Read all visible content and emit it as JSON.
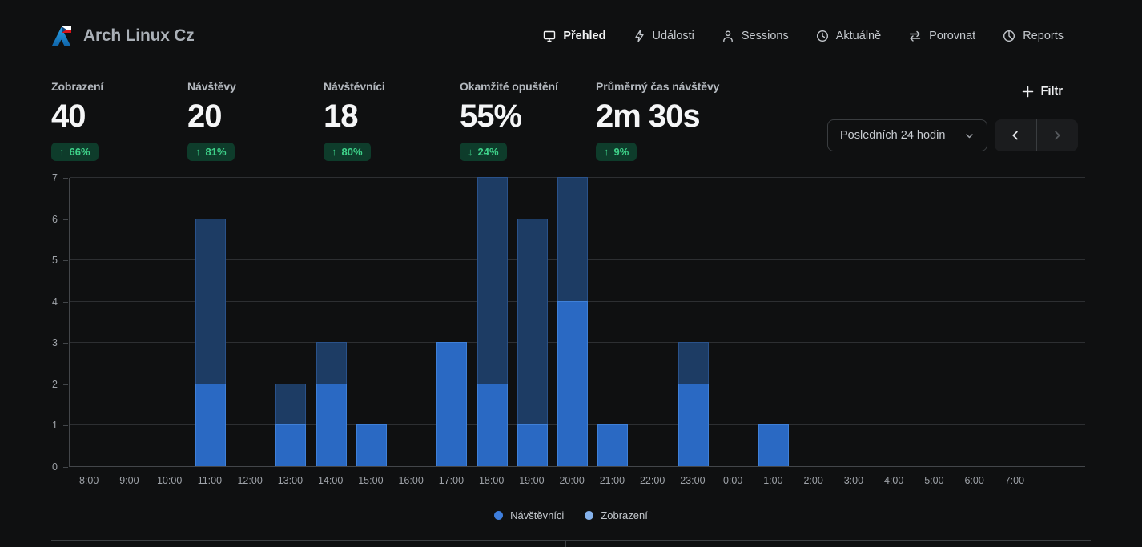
{
  "app": {
    "title": "Arch Linux Cz"
  },
  "nav": {
    "items": [
      {
        "label": "Přehled",
        "icon": "monitor-icon",
        "active": true
      },
      {
        "label": "Události",
        "icon": "lightning-icon",
        "active": false
      },
      {
        "label": "Sessions",
        "icon": "person-icon",
        "active": false
      },
      {
        "label": "Aktuálně",
        "icon": "clock-icon",
        "active": false
      },
      {
        "label": "Porovnat",
        "icon": "compare-icon",
        "active": false
      },
      {
        "label": "Reports",
        "icon": "pie-chart-icon",
        "active": false
      }
    ]
  },
  "metrics": [
    {
      "label": "Zobrazení",
      "value": "40",
      "change": "66%",
      "direction": "up"
    },
    {
      "label": "Návštěvy",
      "value": "20",
      "change": "81%",
      "direction": "up"
    },
    {
      "label": "Návštěvníci",
      "value": "18",
      "change": "80%",
      "direction": "up"
    },
    {
      "label": "Okamžité opuštění",
      "value": "55%",
      "change": "24%",
      "direction": "down"
    },
    {
      "label": "Průměrný čas návštěvy",
      "value": "2m 30s",
      "change": "9%",
      "direction": "up"
    }
  ],
  "toolbar": {
    "filter_label": "Filtr",
    "date_range_value": "Posledních 24 hodin"
  },
  "chart_data": {
    "type": "bar",
    "title": "",
    "xlabel": "",
    "ylabel": "",
    "categories": [
      "8:00",
      "9:00",
      "10:00",
      "11:00",
      "12:00",
      "13:00",
      "14:00",
      "15:00",
      "16:00",
      "17:00",
      "18:00",
      "19:00",
      "20:00",
      "21:00",
      "22:00",
      "23:00",
      "0:00",
      "1:00",
      "2:00",
      "3:00",
      "4:00",
      "5:00",
      "6:00",
      "7:00"
    ],
    "series": [
      {
        "name": "Zobrazení",
        "color": "#1d3c64",
        "values": [
          0,
          0,
          0,
          6,
          0,
          2,
          3,
          1,
          0,
          3,
          7,
          6,
          7,
          1,
          0,
          3,
          0,
          1,
          0,
          0,
          0,
          0,
          0,
          0
        ]
      },
      {
        "name": "Návštěvníci",
        "color": "#2a69c3",
        "values": [
          0,
          0,
          0,
          2,
          0,
          1,
          2,
          1,
          0,
          3,
          2,
          1,
          4,
          1,
          0,
          2,
          0,
          1,
          0,
          0,
          0,
          0,
          0,
          0
        ]
      }
    ],
    "ylim": [
      0,
      7
    ],
    "yticks": [
      0,
      1,
      2,
      3,
      4,
      5,
      6,
      7
    ],
    "grid": "horizontal",
    "legend_position": "bottom",
    "legend": [
      {
        "label": "Návštěvníci",
        "color": "#3e7edd"
      },
      {
        "label": "Zobrazení",
        "color": "#85b2ec"
      }
    ]
  },
  "colors": {
    "background": "#0f1011",
    "accent_blue": "#2a69c3",
    "views_bar": "#1d3c64",
    "badge_bg": "#0e3c2b",
    "badge_text": "#3ed189"
  }
}
